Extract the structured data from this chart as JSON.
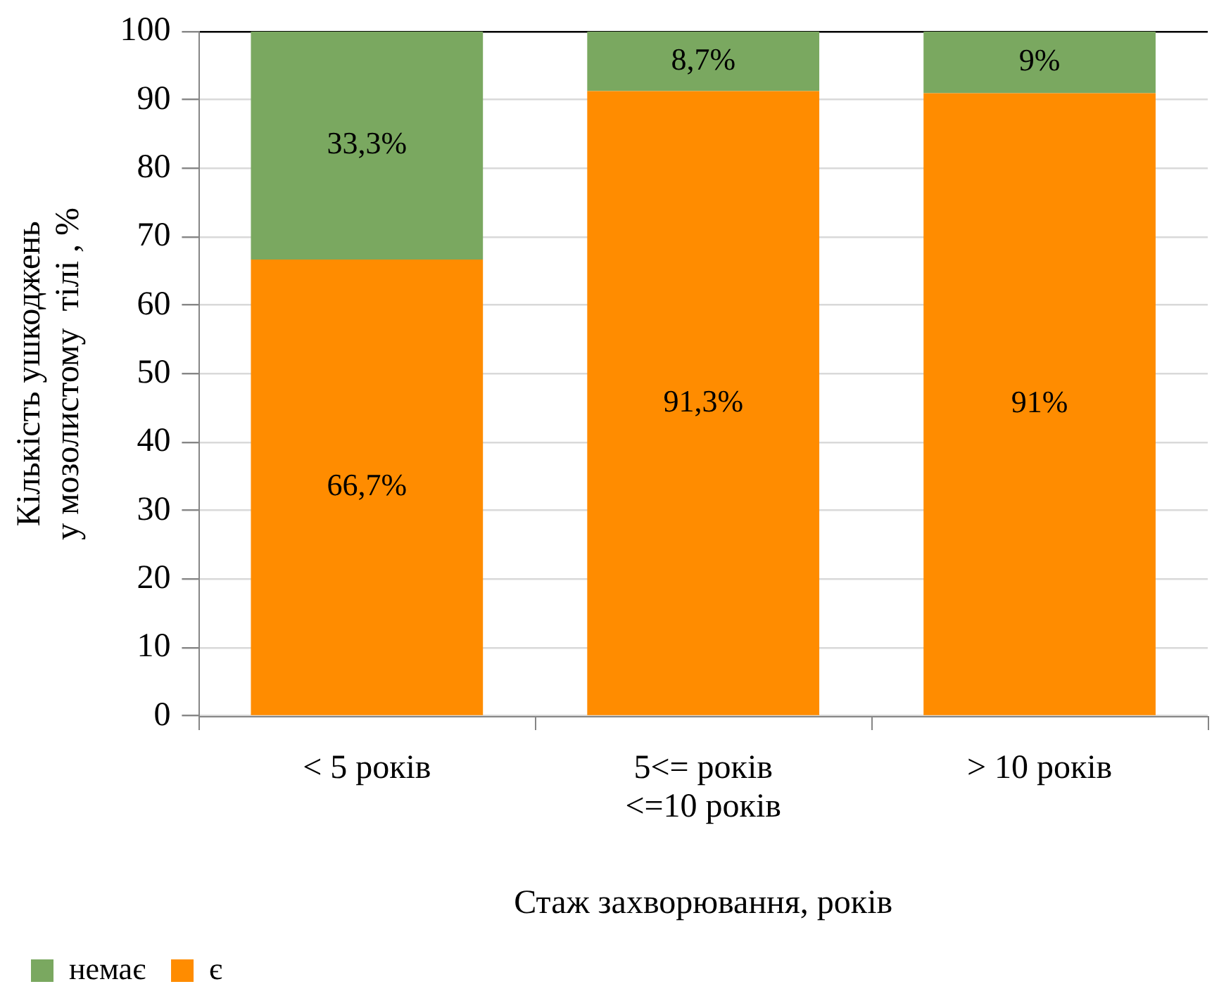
{
  "chart_data": {
    "type": "bar",
    "stacked": true,
    "categories": [
      "< 5 років",
      "5<= років\n<=10 років",
      "> 10 років"
    ],
    "series": [
      {
        "name": "є",
        "color": "#ff8c00",
        "values": [
          66.7,
          91.3,
          91
        ],
        "value_labels": [
          "66,7%",
          "91,3%",
          "91%"
        ]
      },
      {
        "name": "немає",
        "color": "#7aa860",
        "values": [
          33.3,
          8.7,
          9
        ],
        "value_labels": [
          "33,3%",
          "8,7%",
          "9%"
        ]
      }
    ],
    "ylim": [
      0,
      100
    ],
    "yticks": [
      0,
      10,
      20,
      30,
      40,
      50,
      60,
      70,
      80,
      90,
      100
    ],
    "ylabel": "Кількість ушкоджень\nу мозолистому  тілі , %",
    "xlabel": "Стаж захворювання, років",
    "grid": "y",
    "legend": "bottom left"
  }
}
